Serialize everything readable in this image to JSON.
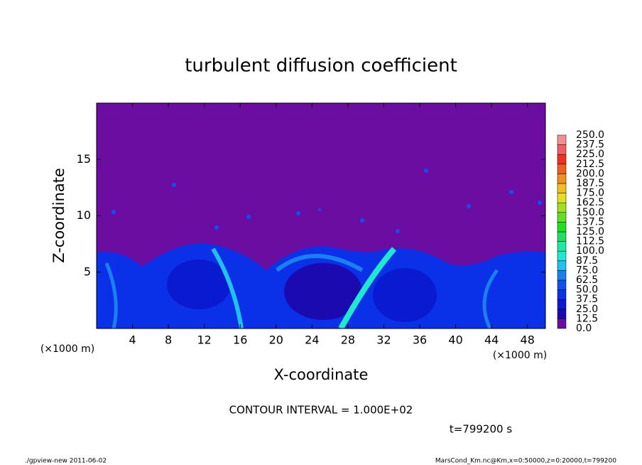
{
  "chart_data": {
    "type": "heatmap",
    "title": "turbulent diffusion coefficient",
    "x_label": "X-coordinate",
    "y_label": "Z-coordinate",
    "x_unit_label": "(×1000 m)",
    "xlim": [
      0,
      50
    ],
    "ylim": [
      0,
      20
    ],
    "xticks": [
      4,
      8,
      12,
      16,
      20,
      24,
      28,
      32,
      36,
      40,
      44,
      48
    ],
    "yticks": [
      5,
      10,
      15
    ],
    "colorbar": {
      "ticks": [
        {
          "value": 0,
          "label": "0.0"
        },
        {
          "value": 12.5,
          "label": "12.5"
        },
        {
          "value": 25,
          "label": "25.0"
        },
        {
          "value": 37.5,
          "label": "37.5"
        },
        {
          "value": 50,
          "label": "50.0"
        },
        {
          "value": 62.5,
          "label": "62.5"
        },
        {
          "value": 75,
          "label": "75.0"
        },
        {
          "value": 87.5,
          "label": "87.5"
        },
        {
          "value": 100,
          "label": "100.0"
        },
        {
          "value": 112.5,
          "label": "112.5"
        },
        {
          "value": 125,
          "label": "125.0"
        },
        {
          "value": 137.5,
          "label": "137.5"
        },
        {
          "value": 150,
          "label": "150.0"
        },
        {
          "value": 162.5,
          "label": "162.5"
        },
        {
          "value": 175,
          "label": "175.0"
        },
        {
          "value": 187.5,
          "label": "187.5"
        },
        {
          "value": 200,
          "label": "200.0"
        },
        {
          "value": 212.5,
          "label": "212.5"
        },
        {
          "value": 225,
          "label": "225.0"
        },
        {
          "value": 237.5,
          "label": "237.5"
        },
        {
          "value": 250,
          "label": "250.0"
        }
      ],
      "colors": [
        "#6a0da0",
        "#1a0ab0",
        "#0a1ad0",
        "#0a30e8",
        "#1050f0",
        "#1a80f0",
        "#20c0f0",
        "#20e8d0",
        "#20e8a0",
        "#20e060",
        "#20e020",
        "#60e020",
        "#a0e020",
        "#e0e020",
        "#f0c020",
        "#f09020",
        "#f06020",
        "#f03020",
        "#f06060",
        "#f09090"
      ]
    },
    "contour_note": "CONTOUR INTERVAL = 1.000E+02",
    "time_label": "t=799200 s",
    "footer_left": "./gpview-new  2011-06-02",
    "footer_right": "MarsCond_Km.nc@Km,x=0:50000,z=0:20000,t=799200"
  }
}
